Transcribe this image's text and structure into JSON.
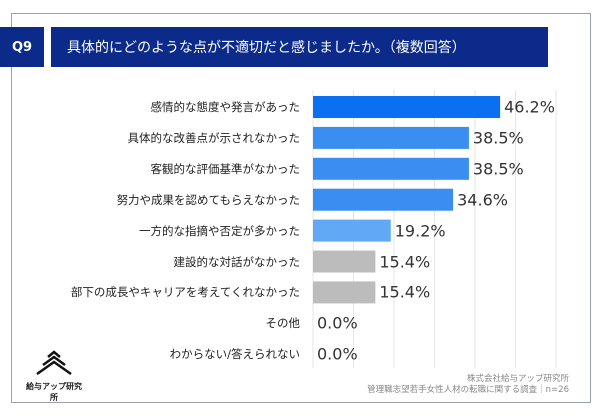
{
  "header": {
    "question_no": "Q9",
    "title": "具体的にどのような点が不適切だと感じましたか。（複数回答）"
  },
  "chart_data": {
    "type": "bar",
    "orientation": "horizontal",
    "categories": [
      "感情的な態度や発言があった",
      "具体的な改善点が示されなかった",
      "客観的な評価基準がなかった",
      "努力や成果を認めてもらえなかった",
      "一方的な指摘や否定が多かった",
      "建設的な対話がなかった",
      "部下の成長やキャリアを考えてくれなかった",
      "その他",
      "わからない/答えられない"
    ],
    "values": [
      46.2,
      38.5,
      38.5,
      34.6,
      19.2,
      15.4,
      15.4,
      0.0,
      0.0
    ],
    "value_labels": [
      "46.2%",
      "38.5%",
      "38.5%",
      "34.6%",
      "19.2%",
      "15.4%",
      "15.4%",
      "0.0%",
      "0.0%"
    ],
    "colors": [
      "#0a6ff0",
      "#3a8ef2",
      "#3a8ef2",
      "#3a8ef2",
      "#62a9f5",
      "#bcbcbc",
      "#bcbcbc",
      "#bcbcbc",
      "#bcbcbc"
    ],
    "xlim": [
      0,
      60
    ],
    "grid": true,
    "unit": "%"
  },
  "footer": {
    "company": "株式会社給与アップ研究所",
    "survey": "管理職志望若手女性人材の転職に関する調査｜n=26"
  },
  "logo": {
    "text": "給与アップ研究所"
  }
}
